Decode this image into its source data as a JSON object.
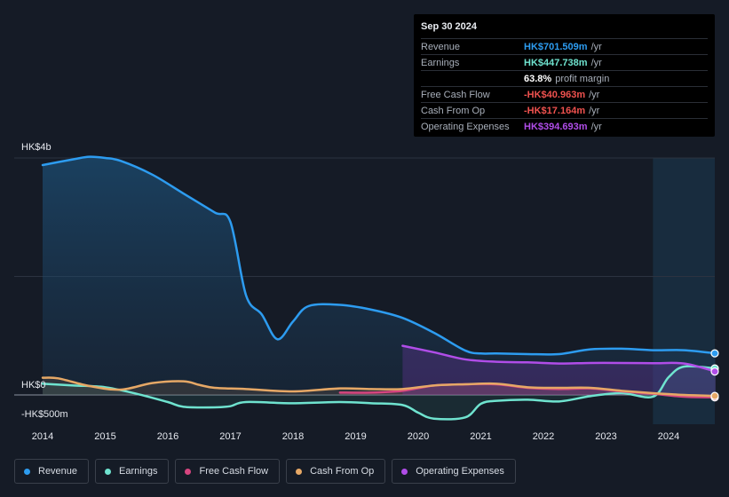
{
  "tooltip": {
    "date": "Sep 30 2024",
    "rows": [
      {
        "name": "Revenue",
        "value": "HK$701.509m",
        "unit": "/yr",
        "color": "#2d9cf0"
      },
      {
        "name": "Earnings",
        "value": "HK$447.738m",
        "unit": "/yr",
        "color": "#6fe3cf"
      },
      {
        "name": "",
        "value": "63.8%",
        "unit": "profit margin",
        "color": "#ffffff"
      },
      {
        "name": "Free Cash Flow",
        "value": "-HK$40.963m",
        "unit": "/yr",
        "color": "#f0524f"
      },
      {
        "name": "Cash From Op",
        "value": "-HK$17.164m",
        "unit": "/yr",
        "color": "#f0524f"
      },
      {
        "name": "Operating Expenses",
        "value": "HK$394.693m",
        "unit": "/yr",
        "color": "#b04de8"
      }
    ]
  },
  "legend": [
    {
      "label": "Revenue",
      "color": "#2d9cf0"
    },
    {
      "label": "Earnings",
      "color": "#6fe3cf"
    },
    {
      "label": "Free Cash Flow",
      "color": "#d6457f"
    },
    {
      "label": "Cash From Op",
      "color": "#e6a866"
    },
    {
      "label": "Operating Expenses",
      "color": "#b04de8"
    }
  ],
  "chart_data": {
    "type": "area",
    "y_axis_labels": [
      "HK$4b",
      "HK$0",
      "-HK$500m"
    ],
    "x_ticks": [
      "2014",
      "2015",
      "2016",
      "2017",
      "2018",
      "2019",
      "2020",
      "2021",
      "2022",
      "2023",
      "2024"
    ],
    "ylim": [
      -500,
      4000
    ],
    "y_unit": "HK$m",
    "grid": true,
    "highlight_from": 2023.75,
    "series": [
      {
        "name": "Revenue",
        "color": "#2d9cf0",
        "x": [
          2014.0,
          2014.5,
          2014.75,
          2015.0,
          2015.25,
          2015.75,
          2016.25,
          2016.75,
          2017.0,
          2017.25,
          2017.5,
          2017.75,
          2018.0,
          2018.25,
          2018.75,
          2019.25,
          2019.75,
          2020.25,
          2020.75,
          2021.0,
          2021.25,
          2021.75,
          2022.25,
          2022.75,
          2023.25,
          2023.75,
          2024.25,
          2024.75
        ],
        "y": [
          3880,
          3980,
          4020,
          4000,
          3950,
          3720,
          3400,
          3080,
          2920,
          1680,
          1360,
          940,
          1240,
          1500,
          1520,
          1440,
          1300,
          1050,
          750,
          700,
          700,
          690,
          690,
          770,
          780,
          755,
          755,
          702
        ]
      },
      {
        "name": "Earnings",
        "color": "#6fe3cf",
        "x": [
          2014.0,
          2014.5,
          2015.0,
          2015.5,
          2016.0,
          2016.25,
          2016.75,
          2017.0,
          2017.25,
          2018.0,
          2018.75,
          2019.25,
          2019.75,
          2020.0,
          2020.25,
          2020.75,
          2021.0,
          2021.25,
          2021.75,
          2022.25,
          2022.75,
          2023.25,
          2023.75,
          2024.0,
          2024.25,
          2024.75
        ],
        "y": [
          190,
          160,
          130,
          20,
          -120,
          -200,
          -210,
          -190,
          -120,
          -140,
          -120,
          -140,
          -170,
          -300,
          -400,
          -380,
          -150,
          -100,
          -80,
          -110,
          -20,
          30,
          -30,
          300,
          480,
          448
        ]
      },
      {
        "name": "Free Cash Flow",
        "color": "#d6457f",
        "x": [
          2018.75,
          2019.25,
          2019.75,
          2020.25,
          2020.75,
          2021.25,
          2021.75,
          2022.25,
          2022.75,
          2023.25,
          2023.75,
          2024.25,
          2024.75
        ],
        "y": [
          40,
          40,
          70,
          160,
          180,
          180,
          120,
          100,
          110,
          60,
          20,
          -30,
          -41
        ]
      },
      {
        "name": "Cash From Op",
        "color": "#e6a866",
        "x": [
          2014.0,
          2014.25,
          2014.75,
          2015.25,
          2015.75,
          2016.25,
          2016.5,
          2016.75,
          2017.25,
          2018.0,
          2018.75,
          2019.25,
          2019.75,
          2020.25,
          2020.75,
          2021.25,
          2021.75,
          2022.25,
          2022.75,
          2023.25,
          2023.75,
          2024.25,
          2024.75
        ],
        "y": [
          290,
          280,
          150,
          90,
          200,
          230,
          170,
          120,
          100,
          60,
          110,
          100,
          100,
          160,
          180,
          190,
          130,
          120,
          120,
          70,
          30,
          0,
          -17
        ]
      },
      {
        "name": "Operating Expenses",
        "color": "#b04de8",
        "x": [
          2019.75,
          2020.25,
          2020.75,
          2021.25,
          2021.75,
          2022.25,
          2022.75,
          2023.25,
          2023.75,
          2024.25,
          2024.75
        ],
        "y": [
          830,
          720,
          600,
          560,
          550,
          530,
          540,
          540,
          535,
          530,
          395
        ]
      }
    ]
  }
}
